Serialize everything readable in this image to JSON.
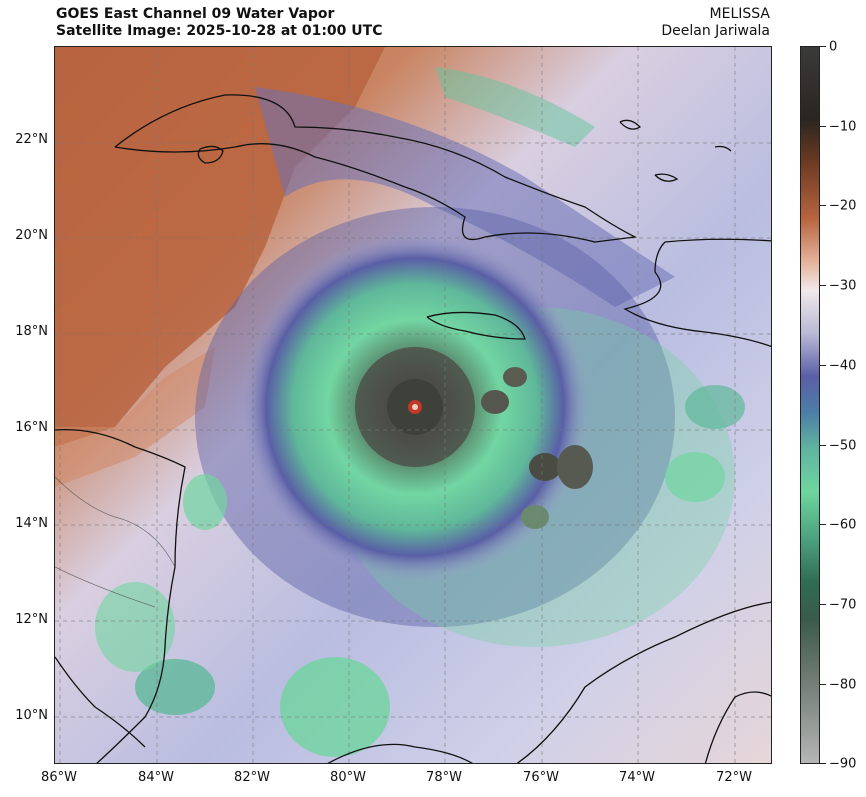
{
  "title": {
    "line1": "GOES East Channel 09 Water Vapor",
    "line2": "Satellite Image: 2025-10-28 at 01:00 UTC"
  },
  "credit": {
    "storm": "MELISSA",
    "author": "Deelan Jariwala"
  },
  "latitude_labels": [
    "22°N",
    "20°N",
    "18°N",
    "16°N",
    "14°N",
    "12°N",
    "10°N"
  ],
  "longitude_labels": [
    "86°W",
    "84°W",
    "82°W",
    "80°W",
    "78°W",
    "76°W",
    "74°W",
    "72°W"
  ],
  "colorbar": {
    "ticks": [
      "0",
      "−10",
      "−20",
      "−30",
      "−40",
      "−50",
      "−60",
      "−70",
      "−80",
      "−90"
    ]
  },
  "colors": {
    "warm_dry": "#b8643f",
    "neutral": "#f1e8ea",
    "moist_blue": "#5a5fa6",
    "cold_green": "#6fd59f",
    "eye_red": "#c0392b"
  }
}
